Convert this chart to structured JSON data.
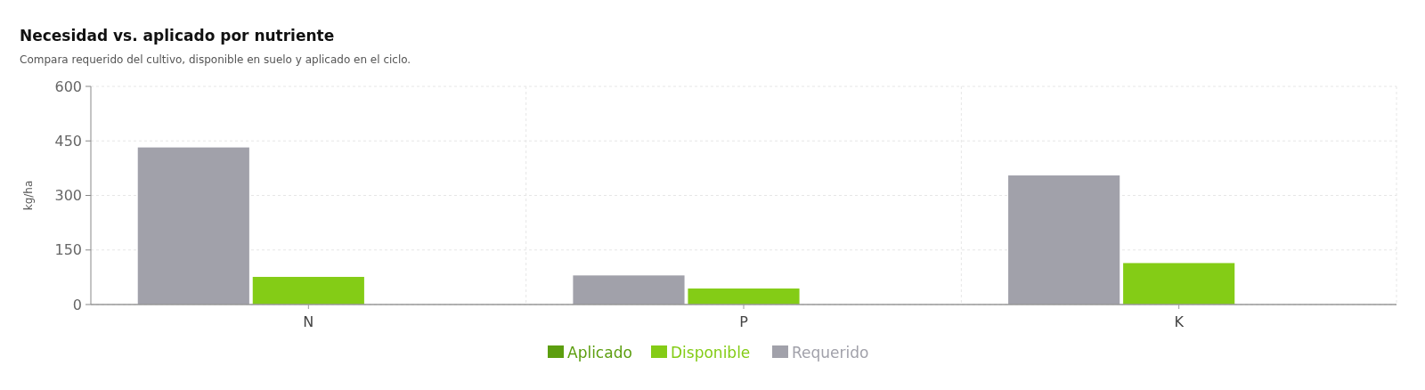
{
  "chart_data": {
    "type": "bar",
    "title": "Necesidad vs. aplicado por nutriente",
    "subtitle": "Compara requerido del cultivo, disponible en suelo y aplicado en el ciclo.",
    "ylabel": "kg/ha",
    "categories": [
      "N",
      "P",
      "K"
    ],
    "series": [
      {
        "name": "Requerido",
        "color": "#a1a1aa",
        "values": [
          432,
          80,
          355
        ]
      },
      {
        "name": "Disponible",
        "color": "#84cc16",
        "values": [
          76,
          44,
          114
        ]
      },
      {
        "name": "Aplicado",
        "color": "#5c9e0f",
        "values": [
          0,
          0,
          0
        ]
      }
    ],
    "ylim": [
      0,
      600
    ],
    "yticks": [
      0,
      150,
      300,
      450,
      600
    ],
    "grid": true,
    "legend": "bottom"
  }
}
